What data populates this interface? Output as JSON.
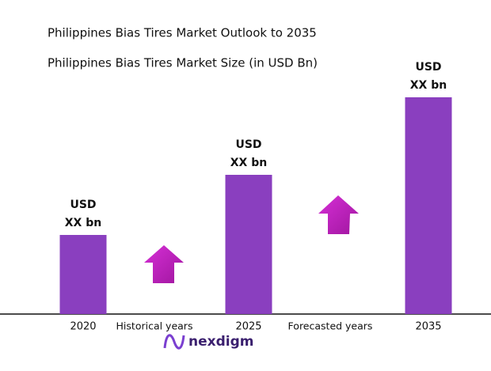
{
  "chart_data": {
    "type": "bar",
    "title": "Philippines Bias Tires Market Outlook to 2035",
    "subtitle": "Philippines Bias Tires Market Size (in USD Bn)",
    "categories": [
      "2020",
      "2025",
      "2035"
    ],
    "values": [
      1.0,
      1.76,
      2.74
    ],
    "value_labels": [
      [
        "USD",
        "XX bn"
      ],
      [
        "USD",
        "XX bn"
      ],
      [
        "USD",
        "XX bn"
      ]
    ],
    "color": "#8a3fbf",
    "ylim": [
      0,
      3
    ],
    "annotations": [
      "Historical years",
      "Forecasted years"
    ],
    "logo": "nexdigm"
  }
}
